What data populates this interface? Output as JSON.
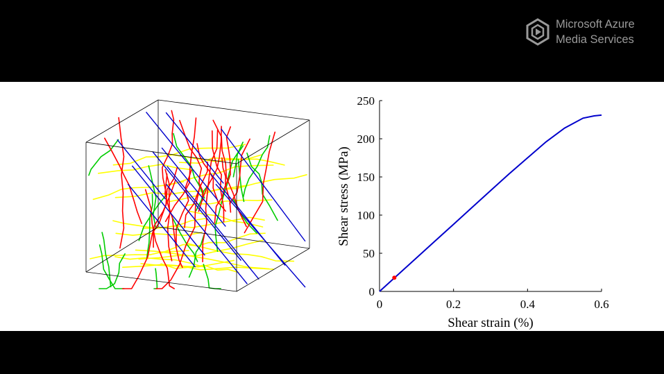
{
  "watermark": {
    "line1": "Microsoft Azure",
    "line2": "Media Services",
    "icon": "media-services-logo-icon"
  },
  "simulation": {
    "fiber_colors": [
      "#ff0000",
      "#00cc00",
      "#ffff00",
      "#0000cc"
    ],
    "box_edge_color": "#000000"
  },
  "chart_data": {
    "type": "line",
    "xlabel": "Shear strain (%)",
    "ylabel": "Shear stress (MPa)",
    "xlim": [
      0,
      0.6
    ],
    "ylim": [
      0,
      250
    ],
    "xticks": [
      0,
      0.2,
      0.4,
      0.6
    ],
    "xtick_labels": [
      "0",
      "0.2",
      "0.4",
      "0.6"
    ],
    "yticks": [
      0,
      50,
      100,
      150,
      200,
      250
    ],
    "ytick_labels": [
      "0",
      "50",
      "100",
      "150",
      "200",
      "250"
    ],
    "grid": false,
    "series": [
      {
        "color": "#0000cc",
        "x": [
          0,
          0.05,
          0.1,
          0.15,
          0.2,
          0.25,
          0.3,
          0.35,
          0.4,
          0.45,
          0.5,
          0.55,
          0.58,
          0.6
        ],
        "y": [
          0,
          22,
          44,
          66,
          88,
          110,
          132,
          154,
          175,
          196,
          214,
          227,
          230,
          231
        ]
      }
    ],
    "marker": {
      "x": 0.04,
      "y": 18,
      "color": "#ff0000"
    }
  }
}
